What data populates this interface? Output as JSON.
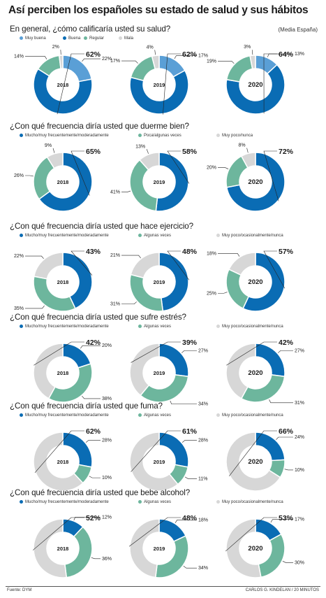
{
  "title": "Así perciben los españoles su estado de salud y sus hábitos",
  "note": "(Media España)",
  "source": "Fuente: DYM",
  "credit": "CARLOS G. KINDELAN / 20 MINUTOS",
  "colors": {
    "dark_blue": "#0a6cb4",
    "light_blue": "#5a9fd6",
    "green": "#6db69d",
    "gray": "#d7d7d7"
  },
  "chart_data": [
    {
      "type": "pie",
      "title": "En general, ¿cómo calificaría usted su salud?",
      "categories": [
        "2018",
        "2019",
        "2020"
      ],
      "series": [
        {
          "name": "Muy buena",
          "color": "#5a9fd6",
          "values": [
            22,
            17,
            13
          ]
        },
        {
          "name": "Buena",
          "color": "#0a6cb4",
          "values": [
            62,
            62,
            64
          ]
        },
        {
          "name": "Regular",
          "color": "#6db69d",
          "values": [
            14,
            17,
            19
          ]
        },
        {
          "name": "Mala",
          "color": "#d7d7d7",
          "values": [
            2,
            4,
            3
          ]
        }
      ]
    },
    {
      "type": "pie",
      "title": "¿Con qué frecuencia diría usted que duerme bien?",
      "categories": [
        "2018",
        "2019",
        "2020"
      ],
      "series": [
        {
          "name": "Mucho/muy frecuentemente/moderadamente",
          "color": "#0a6cb4",
          "values": [
            65,
            58,
            72
          ]
        },
        {
          "name": "Poca/algunas veces",
          "color": "#6db69d",
          "values": [
            26,
            41,
            20
          ]
        },
        {
          "name": "Muy poco/nunca",
          "color": "#d7d7d7",
          "values": [
            9,
            13,
            8
          ]
        }
      ]
    },
    {
      "type": "pie",
      "title": "¿Con qué frecuencia diría usted que hace ejercicio?",
      "categories": [
        "2018",
        "2019",
        "2020"
      ],
      "series": [
        {
          "name": "Mucho/muy frecuentemente/moderadamente",
          "color": "#0a6cb4",
          "values": [
            43,
            48,
            57
          ]
        },
        {
          "name": "Algunas veces",
          "color": "#6db69d",
          "values": [
            35,
            31,
            25
          ]
        },
        {
          "name": "Muy poco/ocasionalmente/nunca",
          "color": "#d7d7d7",
          "values": [
            22,
            21,
            18
          ]
        }
      ]
    },
    {
      "type": "pie",
      "title": "¿Con qué frecuencia diría usted que sufre estrés?",
      "categories": [
        "2018",
        "2019",
        "2020"
      ],
      "series": [
        {
          "name": "Mucho/muy frecuentemente/moderadamente",
          "color": "#0a6cb4",
          "values": [
            20,
            27,
            27
          ]
        },
        {
          "name": "Algunas veces",
          "color": "#6db69d",
          "values": [
            38,
            34,
            31
          ]
        },
        {
          "name": "Muy poco/ocasionalmente/nunca",
          "color": "#d7d7d7",
          "values": [
            42,
            39,
            42
          ]
        }
      ]
    },
    {
      "type": "pie",
      "title": "¿Con qué frecuencia diría usted que fuma?",
      "categories": [
        "2018",
        "2019",
        "2020"
      ],
      "series": [
        {
          "name": "Mucho/muy frecuentemente/moderadamente",
          "color": "#0a6cb4",
          "values": [
            28,
            28,
            24
          ]
        },
        {
          "name": "Algunas veces",
          "color": "#6db69d",
          "values": [
            10,
            11,
            10
          ]
        },
        {
          "name": "Muy poco/ocasionalmente/nunca",
          "color": "#d7d7d7",
          "values": [
            62,
            61,
            66
          ]
        }
      ]
    },
    {
      "type": "pie",
      "title": "¿Con qué frecuencia diría usted que bebe alcohol?",
      "categories": [
        "2018",
        "2019",
        "2020"
      ],
      "series": [
        {
          "name": "Mucho/muy frecuentemente/moderadamente",
          "color": "#0a6cb4",
          "values": [
            12,
            18,
            17
          ]
        },
        {
          "name": "Algunas veces",
          "color": "#6db69d",
          "values": [
            36,
            34,
            30
          ]
        },
        {
          "name": "Muy poco/ocasionalmente/nunca",
          "color": "#d7d7d7",
          "values": [
            52,
            48,
            53
          ]
        }
      ]
    }
  ]
}
